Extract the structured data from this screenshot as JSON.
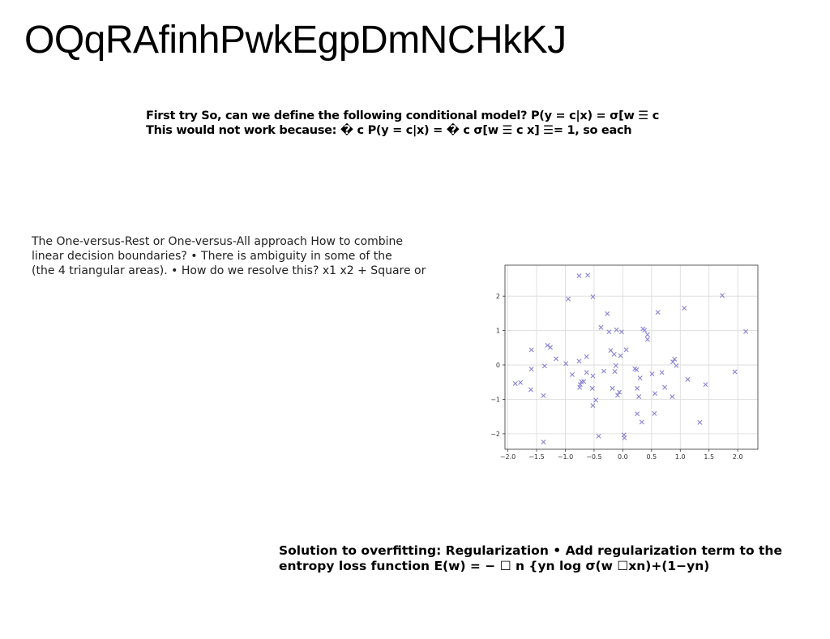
{
  "title": "OQqRAfinhPwkEgpDmNCHkKJ",
  "block1": {
    "line1": "First try So, can we define the following conditional model? P(y = c|x) = σ[w ☰ c",
    "line2": "This would not work because: � c P(y = c|x) = � c σ[w ☰ c x] ☰= 1, so each"
  },
  "block2": {
    "line1": "The One-versus-Rest or One-versus-All approach How to combine",
    "line2": "linear decision boundaries? • There is ambiguity in some of the",
    "line3": "(the 4 triangular areas). • How do we resolve this? x1 x2 + Square or"
  },
  "block3": {
    "line1": "Solution to overfitting: Regularization • Add regularization term to the",
    "line2": "entropy loss function E(w) = − ☐ n {yn log σ(w ☐xn)+(1−yn)"
  },
  "chart_data": {
    "type": "scatter",
    "marker": "x",
    "color": "#8a82d6",
    "grid": true,
    "xlim": [
      -2.05,
      2.35
    ],
    "ylim": [
      -2.45,
      2.9
    ],
    "xticks": [
      "−2.0",
      "−1.5",
      "−1.0",
      "−0.5",
      "0.0",
      "0.5",
      "1.0",
      "1.5",
      "2.0"
    ],
    "yticks": [
      "2",
      "1",
      "0",
      "−1",
      "−2"
    ],
    "xtick_values": [
      -2.0,
      -1.5,
      -1.0,
      -0.5,
      0.0,
      0.5,
      1.0,
      1.5,
      2.0
    ],
    "ytick_values": [
      2,
      1,
      0,
      -1,
      -2
    ],
    "points": [
      [
        -0.76,
        2.59
      ],
      [
        -0.61,
        2.61
      ],
      [
        -0.52,
        1.98
      ],
      [
        -0.95,
        1.92
      ],
      [
        -0.27,
        1.49
      ],
      [
        0.61,
        1.53
      ],
      [
        1.07,
        1.65
      ],
      [
        1.73,
        2.02
      ],
      [
        2.14,
        0.97
      ],
      [
        -0.38,
        1.09
      ],
      [
        -0.24,
        0.96
      ],
      [
        -0.11,
        1.02
      ],
      [
        -0.02,
        0.96
      ],
      [
        0.35,
        1.05
      ],
      [
        0.43,
        0.88
      ],
      [
        0.38,
        1.01
      ],
      [
        0.43,
        0.74
      ],
      [
        -1.59,
        0.44
      ],
      [
        -1.31,
        0.57
      ],
      [
        -1.26,
        0.51
      ],
      [
        -1.16,
        0.18
      ],
      [
        -0.21,
        0.42
      ],
      [
        -0.15,
        0.31
      ],
      [
        -0.04,
        0.27
      ],
      [
        0.06,
        0.44
      ],
      [
        -0.63,
        0.24
      ],
      [
        -0.76,
        0.11
      ],
      [
        -0.99,
        0.04
      ],
      [
        -1.36,
        -0.03
      ],
      [
        -1.59,
        -0.12
      ],
      [
        -0.12,
        -0.02
      ],
      [
        -0.14,
        -0.19
      ],
      [
        -0.33,
        -0.18
      ],
      [
        0.24,
        -0.14
      ],
      [
        0.21,
        -0.11
      ],
      [
        0.68,
        -0.22
      ],
      [
        0.51,
        -0.26
      ],
      [
        0.9,
        0.17
      ],
      [
        0.87,
        0.09
      ],
      [
        0.93,
        -0.02
      ],
      [
        -0.88,
        -0.28
      ],
      [
        -0.63,
        -0.22
      ],
      [
        -0.52,
        -0.32
      ],
      [
        -0.72,
        -0.49
      ],
      [
        -0.68,
        -0.48
      ],
      [
        -0.74,
        -0.57
      ],
      [
        -0.75,
        -0.65
      ],
      [
        -1.78,
        -0.51
      ],
      [
        -1.87,
        -0.54
      ],
      [
        -1.6,
        -0.72
      ],
      [
        -1.38,
        -0.89
      ],
      [
        -0.53,
        -0.68
      ],
      [
        -0.18,
        -0.68
      ],
      [
        -0.06,
        -0.79
      ],
      [
        -0.09,
        -0.88
      ],
      [
        -0.47,
        -1.02
      ],
      [
        -0.52,
        -1.18
      ],
      [
        0.25,
        -0.68
      ],
      [
        0.3,
        -0.38
      ],
      [
        0.73,
        -0.65
      ],
      [
        0.56,
        -0.83
      ],
      [
        0.86,
        -0.92
      ],
      [
        1.13,
        -0.42
      ],
      [
        1.44,
        -0.57
      ],
      [
        1.95,
        -0.2
      ],
      [
        0.28,
        -0.92
      ],
      [
        0.25,
        -1.42
      ],
      [
        0.33,
        -1.66
      ],
      [
        0.55,
        -1.41
      ],
      [
        1.34,
        -1.67
      ],
      [
        -0.42,
        -2.07
      ],
      [
        0.02,
        -2.03
      ],
      [
        0.03,
        -2.12
      ],
      [
        -1.38,
        -2.24
      ]
    ]
  }
}
